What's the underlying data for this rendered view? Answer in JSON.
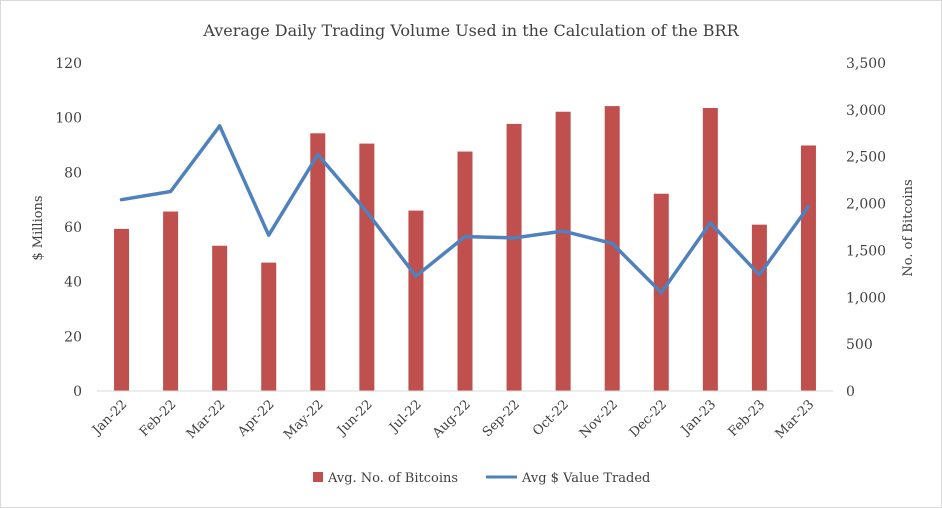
{
  "chart_data": {
    "type": "bar",
    "title": "Average Daily Trading Volume Used in the Calculation of the BRR",
    "categories": [
      "Jan-22",
      "Feb-22",
      "Mar-22",
      "Apr-22",
      "May-22",
      "Jun-22",
      "Jul-22",
      "Aug-22",
      "Sep-22",
      "Oct-22",
      "Nov-22",
      "Dec-22",
      "Jan-23",
      "Feb-23",
      "Mar-23"
    ],
    "y_left": {
      "label": "$ Millions",
      "ylim": [
        0,
        120
      ],
      "ticks": [
        "0",
        "20",
        "40",
        "60",
        "80",
        "100",
        "120"
      ]
    },
    "y_right": {
      "label": "No. of Bitcoins",
      "ylim": [
        0,
        3500
      ],
      "ticks": [
        "0",
        "500",
        "1,000",
        "1,500",
        "2,000",
        "2,500",
        "3,000",
        "3,500"
      ]
    },
    "series": [
      {
        "name": "Avg. No. of Bitcoins",
        "type": "bar",
        "axis": "right",
        "color": "#c0504d",
        "values": [
          1730,
          1915,
          1550,
          1370,
          2750,
          2640,
          1925,
          2555,
          2850,
          2980,
          3040,
          2105,
          3020,
          1775,
          2620
        ]
      },
      {
        "name": "Avg $ Value Traded",
        "type": "line",
        "axis": "left",
        "color": "#4f81bd",
        "values": [
          70,
          73,
          97,
          57,
          86.5,
          65.5,
          42,
          56.5,
          56,
          58.5,
          54,
          36,
          61.5,
          42.5,
          67.5
        ]
      }
    ],
    "grid": false,
    "legend": "bottom-center"
  }
}
